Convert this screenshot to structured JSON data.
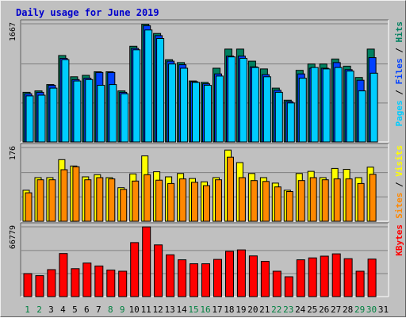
{
  "chart_data": {
    "type": "bar",
    "title": "Daily usage for June 2019",
    "colors": {
      "background": "#c0c0c0",
      "plot_background": "#c0c0c0",
      "title": "#0000cc",
      "pages": "#00ccff",
      "files": "#0040ff",
      "hits": "#008060",
      "visits": "#ffff00",
      "sites": "#ff8800",
      "kbytes": "#ff0000",
      "weekday_label": "#000000",
      "weekend_label": "#008040",
      "separator": "#000000"
    },
    "categories": [
      "1",
      "2",
      "3",
      "4",
      "5",
      "6",
      "7",
      "8",
      "9",
      "10",
      "11",
      "12",
      "13",
      "14",
      "15",
      "16",
      "17",
      "18",
      "19",
      "20",
      "21",
      "22",
      "23",
      "24",
      "25",
      "26",
      "27",
      "28",
      "29",
      "30",
      "31"
    ],
    "weekend_days": [
      "1",
      "2",
      "8",
      "9",
      "15",
      "16",
      "22",
      "23",
      "29",
      "30"
    ],
    "panels": [
      {
        "name": "hits-files-pages",
        "ymax_label": "1667",
        "ymax": 1667,
        "side_label_parts": [
          {
            "text": "Pages",
            "color": "#00ccff"
          },
          {
            "text": " / ",
            "color": "#000000"
          },
          {
            "text": "Files",
            "color": "#0040ff"
          },
          {
            "text": " / ",
            "color": "#000000"
          },
          {
            "text": "Hits",
            "color": "#008060"
          }
        ],
        "series": [
          {
            "name": "Hits",
            "color": "#008060",
            "values": [
              700,
              720,
              810,
              1220,
              920,
              940,
              990,
              990,
              720,
              1350,
              1660,
              1530,
              1160,
              1120,
              860,
              840,
              1040,
              1310,
              1310,
              1140,
              1030,
              760,
              590,
              1010,
              1100,
              1100,
              1170,
              1070,
              910,
              1310,
              0
            ]
          },
          {
            "name": "Files",
            "color": "#0040ff",
            "values": [
              680,
              700,
              800,
              1180,
              880,
              900,
              980,
              980,
              700,
              1320,
              1640,
              1500,
              1140,
              1090,
              850,
              820,
              960,
              1210,
              1210,
              1060,
              950,
              730,
              570,
              960,
              1040,
              1040,
              1120,
              1020,
              870,
              1190,
              0
            ]
          },
          {
            "name": "Pages",
            "color": "#00ccff",
            "values": [
              650,
              660,
              760,
              1160,
              860,
              880,
              800,
              810,
              680,
              1300,
              1580,
              1460,
              1100,
              1040,
              840,
              800,
              930,
              1200,
              1180,
              1050,
              920,
              700,
              550,
              900,
              1050,
              1030,
              1050,
              1000,
              720,
              970,
              0
            ]
          }
        ]
      },
      {
        "name": "visits-sites",
        "ymax_label": "176",
        "ymax": 176,
        "side_label_parts": [
          {
            "text": "Sites",
            "color": "#ff8800"
          },
          {
            "text": " / ",
            "color": "#000000"
          },
          {
            "text": "Visits",
            "color": "#ffff00"
          }
        ],
        "series": [
          {
            "name": "Visits",
            "color": "#ffff00",
            "values": [
              74,
              104,
              104,
              147,
              132,
              106,
              111,
              104,
              80,
              113,
              156,
              118,
              106,
              114,
              102,
              94,
              104,
              170,
              140,
              114,
              104,
              91,
              74,
              114,
              119,
              104,
              126,
              124,
              104,
              129,
              0
            ]
          },
          {
            "name": "Sites",
            "color": "#ff8800",
            "values": [
              68,
              99,
              99,
              123,
              130,
              99,
              104,
              101,
              76,
              96,
              111,
              98,
              90,
              101,
              93,
              85,
              99,
              153,
              104,
              97,
              95,
              82,
              71,
              97,
              104,
              99,
              101,
              101,
              90,
              112,
              0
            ]
          }
        ]
      },
      {
        "name": "kbytes",
        "ymax_label": "66779",
        "ymax": 66779,
        "side_label_parts": [
          {
            "text": "KBytes",
            "color": "#ff0000"
          }
        ],
        "series": [
          {
            "name": "KBytes",
            "color": "#ff0000",
            "values": [
              22000,
              20000,
              25800,
              41200,
              26700,
              32100,
              29300,
              25400,
              24300,
              51700,
              66700,
              49500,
              40000,
              35200,
              31400,
              31400,
              35600,
              43300,
              44700,
              38900,
              33700,
              24300,
              19000,
              35200,
              37000,
              38700,
              40900,
              36300,
              24300,
              35900,
              0
            ]
          }
        ]
      }
    ]
  }
}
